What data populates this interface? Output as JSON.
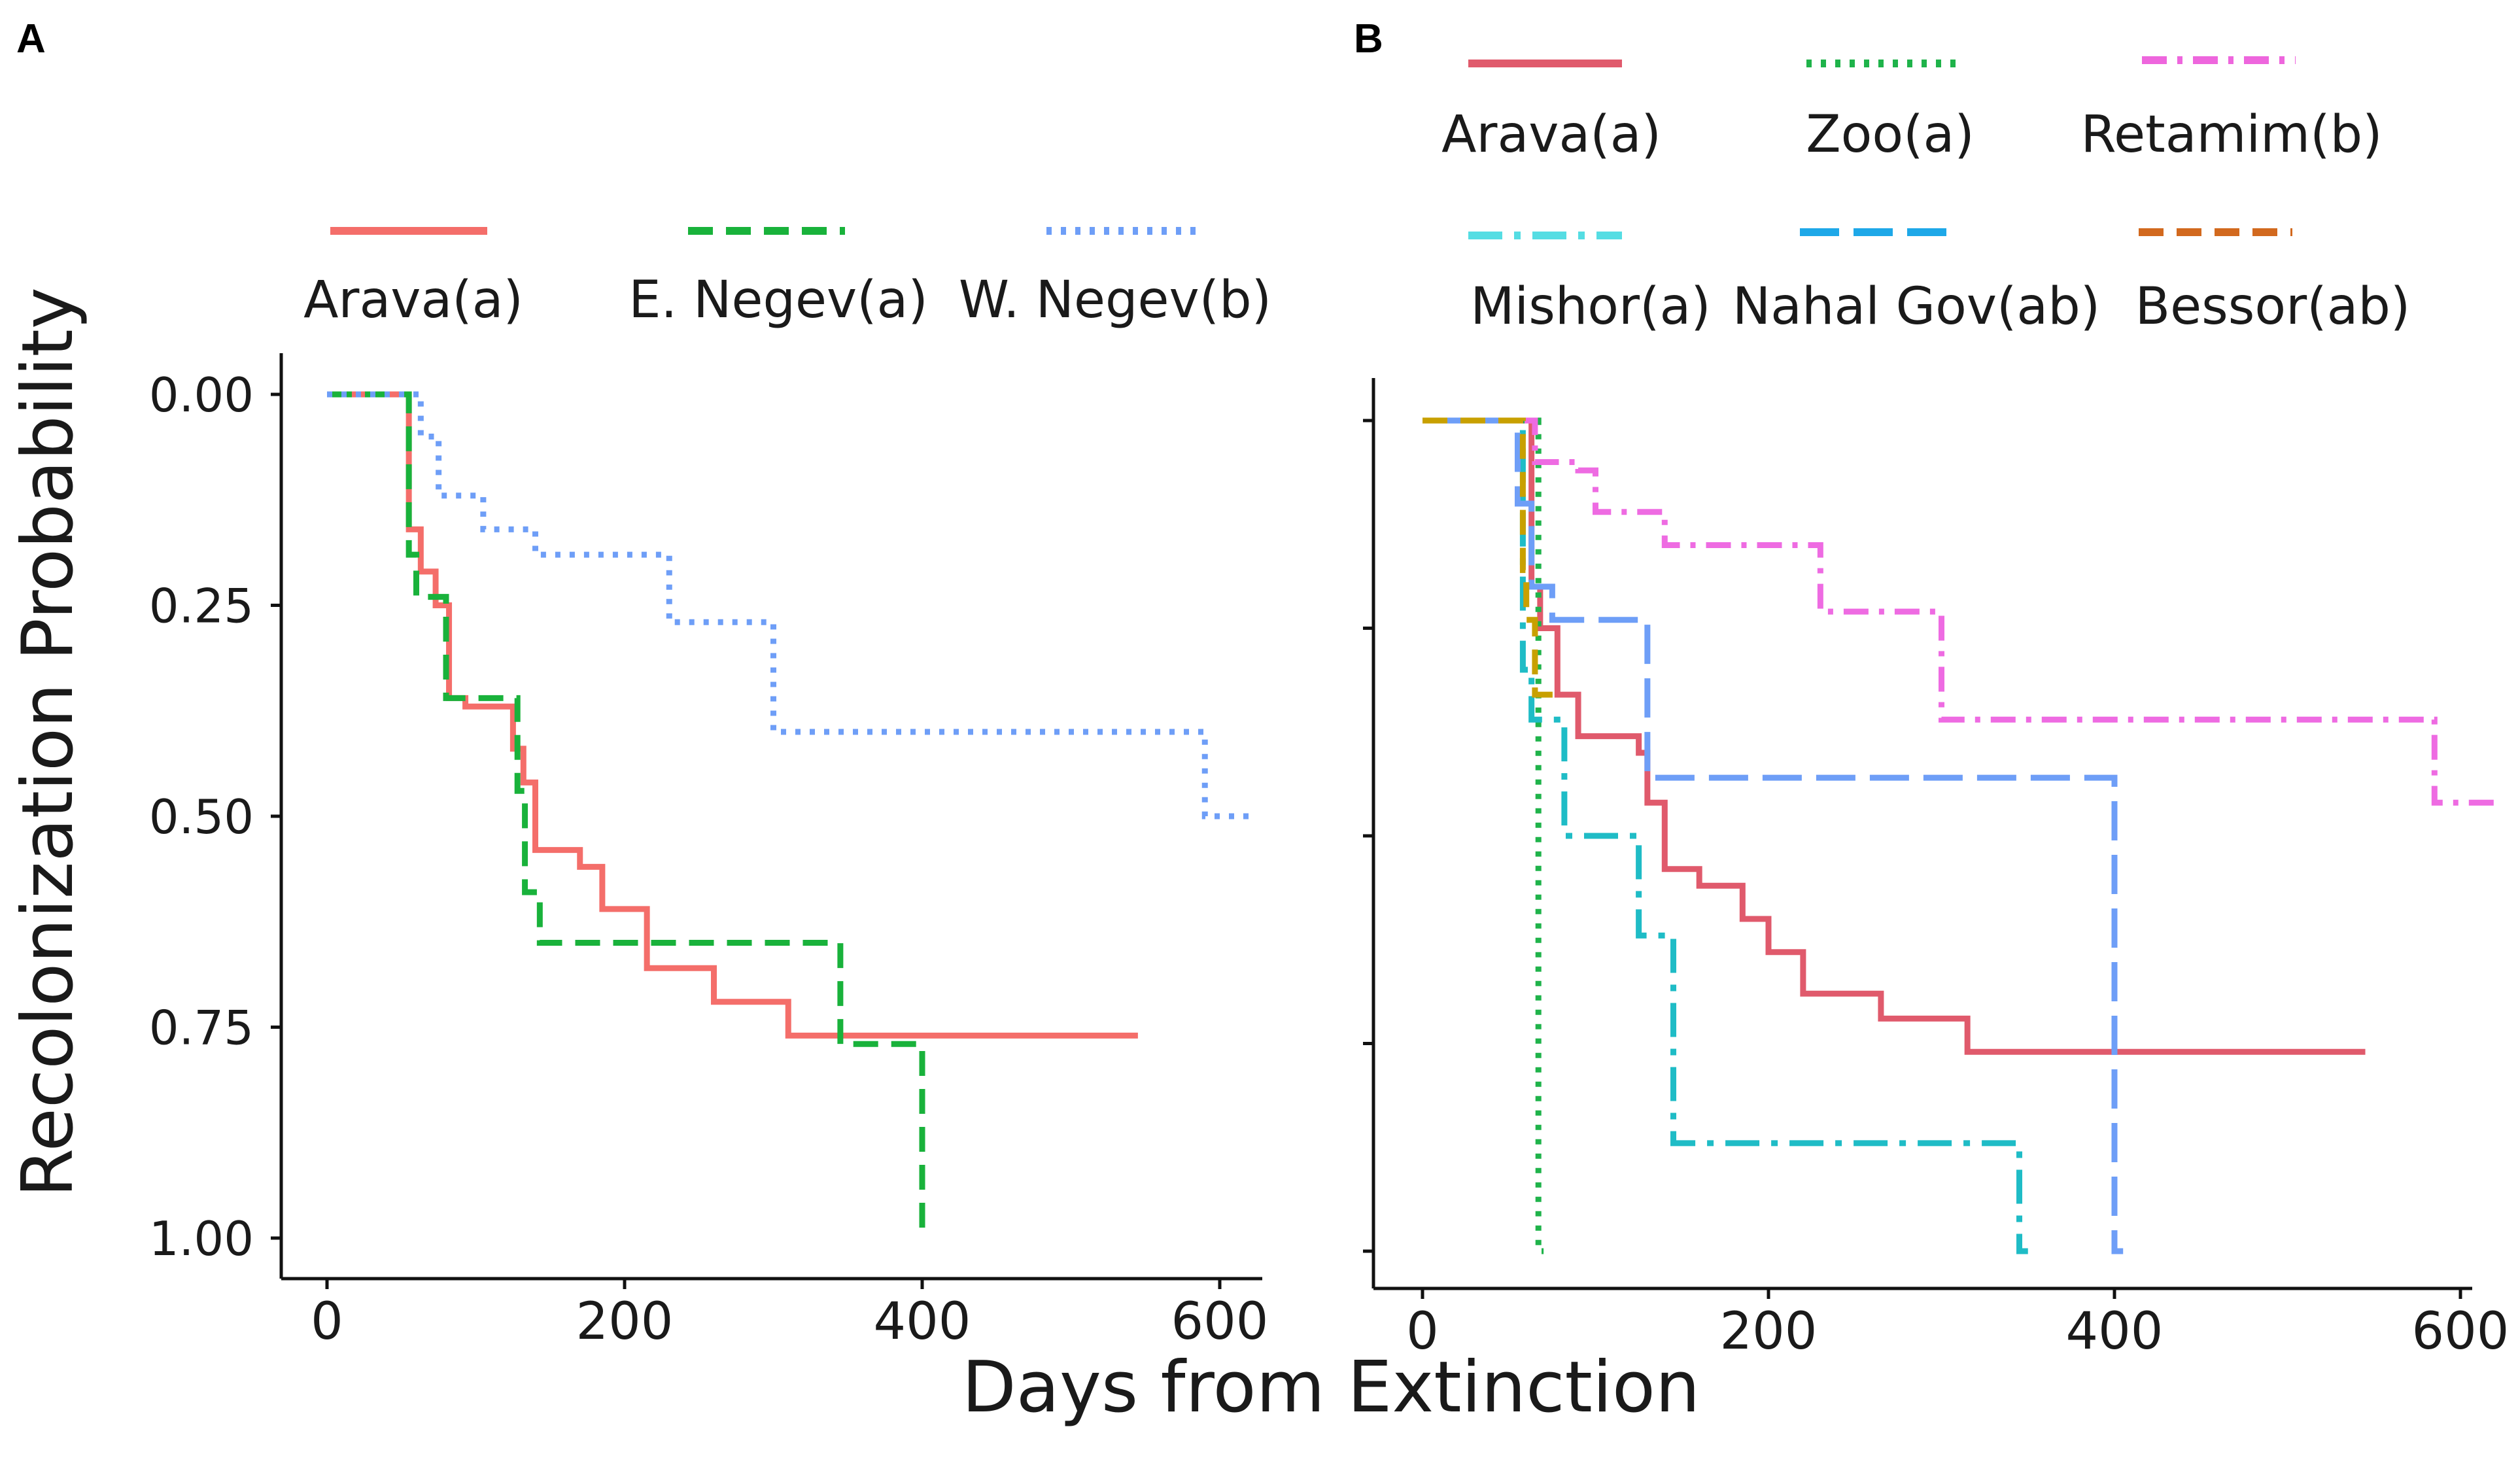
{
  "figure": {
    "ylabel": "Recolonization Probability",
    "xlabel": "Days from Extinction"
  },
  "chart_data": [
    {
      "panel": "A",
      "type": "line",
      "step": true,
      "xlim": [
        -30,
        630
      ],
      "ylim": [
        0,
        1.05
      ],
      "y_inverted": true,
      "x_ticks": [
        0,
        200,
        400,
        600
      ],
      "x_tick_labels": [
        "0",
        "200",
        "400",
        "600"
      ],
      "y_ticks": [
        0,
        0.25,
        0.5,
        0.75,
        1.0
      ],
      "y_tick_labels": [
        "0.00",
        "0.25",
        "0.50",
        "0.75",
        "1.00"
      ],
      "legend_position": "top",
      "series": [
        {
          "name": "Arava(a)",
          "color": "#f46e6a",
          "dash": "solid",
          "x": [
            0,
            55,
            63,
            73,
            82,
            93,
            125,
            132,
            140,
            170,
            185,
            215,
            260,
            310,
            545
          ],
          "y": [
            0,
            0.16,
            0.21,
            0.25,
            0.36,
            0.37,
            0.42,
            0.46,
            0.54,
            0.56,
            0.61,
            0.68,
            0.72,
            0.76,
            0.76
          ]
        },
        {
          "name": "E. Negev(a)",
          "color": "#19b23b",
          "dash": "dashed",
          "x": [
            0,
            55,
            60,
            80,
            128,
            133,
            143,
            345,
            395,
            400
          ],
          "y": [
            0,
            0.19,
            0.24,
            0.36,
            0.47,
            0.59,
            0.65,
            0.77,
            0.77,
            1.0
          ]
        },
        {
          "name": "W. Negev(b)",
          "color": "#6e9ef7",
          "dash": "dotted",
          "x": [
            0,
            63,
            75,
            105,
            140,
            230,
            300,
            590,
            625
          ],
          "y": [
            0,
            0.05,
            0.12,
            0.16,
            0.19,
            0.27,
            0.4,
            0.5,
            0.5
          ]
        }
      ]
    },
    {
      "panel": "B",
      "type": "line",
      "step": true,
      "xlim": [
        -30,
        630
      ],
      "ylim": [
        0,
        1.05
      ],
      "y_inverted": true,
      "x_ticks": [
        0,
        200,
        400,
        600
      ],
      "x_tick_labels": [
        "0",
        "200",
        "400",
        "600"
      ],
      "y_ticks": [
        0,
        0.25,
        0.5,
        0.75,
        1.0
      ],
      "y_tick_labels": [
        "",
        "",
        "",
        "",
        ""
      ],
      "legend_position": "top",
      "series": [
        {
          "name": "Arava(a)",
          "color": "#e05a6c",
          "dash": "solid",
          "x": [
            0,
            63,
            68,
            78,
            90,
            125,
            130,
            140,
            160,
            185,
            200,
            220,
            265,
            315,
            545
          ],
          "y": [
            0,
            0.2,
            0.25,
            0.33,
            0.38,
            0.4,
            0.46,
            0.54,
            0.56,
            0.6,
            0.64,
            0.69,
            0.72,
            0.76,
            0.76
          ]
        },
        {
          "name": "Zoo(a)",
          "color": "#1fb34a",
          "dash": "dotted",
          "x": [
            0,
            67,
            70
          ],
          "y": [
            0,
            1.0,
            1.0
          ]
        },
        {
          "name": "Retamim(b)",
          "color": "#ee6be2",
          "dash": "dashdot",
          "x": [
            0,
            65,
            90,
            100,
            140,
            230,
            300,
            585,
            625
          ],
          "y": [
            0,
            0.05,
            0.06,
            0.11,
            0.15,
            0.23,
            0.36,
            0.46,
            0.46
          ]
        },
        {
          "name": "Mishor(a)",
          "color": "#1fbcc6",
          "dash": "longdashdot",
          "x": [
            0,
            58,
            63,
            82,
            125,
            145,
            345,
            350
          ],
          "y": [
            0,
            0.3,
            0.36,
            0.5,
            0.62,
            0.87,
            1.0,
            1.0
          ]
        },
        {
          "name": "Nahal Gov(ab)",
          "color": "#6e9ef7",
          "dash": "longdash",
          "x": [
            0,
            55,
            63,
            75,
            130,
            400,
            405
          ],
          "y": [
            0,
            0.1,
            0.2,
            0.24,
            0.43,
            1.0,
            1.0
          ]
        },
        {
          "name": "Bessor(ab)",
          "color": "#c8a000",
          "dash": "dashed",
          "x": [
            0,
            58,
            60,
            65,
            70,
            80
          ],
          "y": [
            0,
            0.18,
            0.24,
            0.33,
            0.33,
            0.33
          ]
        }
      ],
      "legend_overrides": {
        "Bessor(ab)": {
          "color": "#d2691e"
        },
        "Retamim(b)": {
          "color": "#ee66dd"
        },
        "Mishor(a)": {
          "color": "#55dde3"
        },
        "Nahal Gov(ab)": {
          "color": "#1ea8e8"
        },
        "Arava(a)": {
          "color": "#e05a6c"
        },
        "Zoo(a)": {
          "color": "#1fb34a"
        }
      }
    }
  ]
}
